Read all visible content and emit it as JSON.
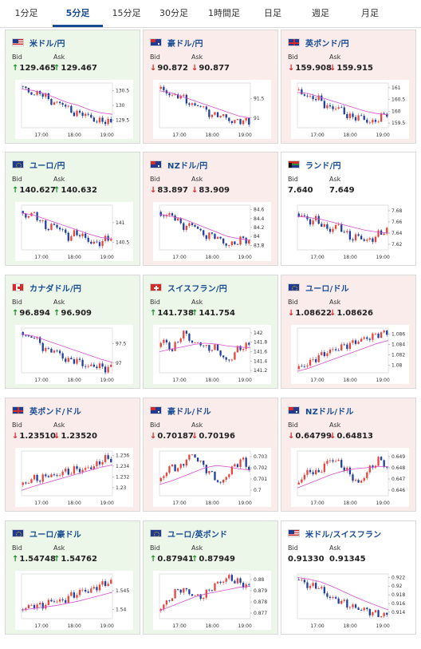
{
  "colors": {
    "accent": "#174b93",
    "up_arrow": "#1a8f26",
    "down_arrow": "#d92626",
    "up_candle": "#e8443a",
    "down_candle": "#1f3ea0",
    "ma_line": "#d64fd0"
  },
  "tabs": [
    {
      "label": "1分足",
      "active": false
    },
    {
      "label": "5分足",
      "active": true
    },
    {
      "label": "15分足",
      "active": false
    },
    {
      "label": "30分足",
      "active": false
    },
    {
      "label": "1時間足",
      "active": false
    },
    {
      "label": "日足",
      "active": false
    },
    {
      "label": "週足",
      "active": false
    },
    {
      "label": "月足",
      "active": false
    }
  ],
  "bid_label": "Bid",
  "ask_label": "Ask",
  "cards": [
    {
      "pair": "米ドル/円",
      "flag": "us",
      "trend": "up",
      "bid": "129.465",
      "ask": "129.467",
      "chart_data": {
        "type": "candlestick",
        "x_ticks": [
          "17:00",
          "18:00",
          "19:00"
        ],
        "y_ticks": [
          "129.5",
          "130",
          "130.5"
        ],
        "ylim": [
          129.25,
          130.75
        ],
        "path": [
          130.65,
          130.5,
          130.35,
          130.45,
          130.2,
          130.05,
          130.1,
          129.85,
          129.7,
          129.75,
          129.6,
          129.45,
          129.5,
          129.4
        ],
        "ma": [
          130.55,
          130.5,
          130.4,
          130.25,
          130.1,
          130.0,
          129.85,
          129.75,
          129.7
        ]
      }
    },
    {
      "pair": "豪ドル/円",
      "flag": "au",
      "trend": "down",
      "bid": "90.872",
      "ask": "90.877",
      "chart_data": {
        "type": "candlestick",
        "x_ticks": [
          "17:00",
          "18:00",
          "19:00"
        ],
        "y_ticks": [
          "91",
          "91.5"
        ],
        "ylim": [
          90.75,
          91.9
        ],
        "path": [
          91.75,
          91.7,
          91.55,
          91.6,
          91.45,
          91.3,
          91.35,
          91.15,
          91.05,
          91.1,
          90.95,
          90.9,
          90.95,
          90.88
        ],
        "ma": [
          91.7,
          91.65,
          91.55,
          91.45,
          91.35,
          91.25,
          91.15,
          91.05,
          91.0
        ]
      }
    },
    {
      "pair": "英ポンド/円",
      "flag": "gb",
      "trend": "down",
      "bid": "159.908",
      "ask": "159.915",
      "chart_data": {
        "type": "candlestick",
        "x_ticks": [
          "17:00",
          "18:00",
          "19:00"
        ],
        "y_ticks": [
          "159.5",
          "160",
          "160.5",
          "161"
        ],
        "ylim": [
          159.3,
          161.2
        ],
        "path": [
          160.9,
          160.75,
          160.55,
          160.6,
          160.3,
          160.1,
          160.2,
          159.9,
          159.7,
          159.8,
          159.6,
          159.5,
          159.75,
          159.9
        ],
        "ma": [
          160.8,
          160.75,
          160.6,
          160.45,
          160.3,
          160.15,
          160.0,
          159.9,
          159.85
        ]
      }
    },
    {
      "pair": "ユーロ/円",
      "flag": "eu",
      "trend": "up",
      "bid": "140.627",
      "ask": "140.632",
      "chart_data": {
        "type": "candlestick",
        "x_ticks": [
          "17:00",
          "18:00",
          "19:00"
        ],
        "y_ticks": [
          "140.5",
          "141"
        ],
        "ylim": [
          140.3,
          141.45
        ],
        "path": [
          141.3,
          141.15,
          141.25,
          141.0,
          140.85,
          140.95,
          140.8,
          140.6,
          140.75,
          140.65,
          140.5,
          140.45,
          140.55,
          140.62
        ],
        "ma": [
          141.25,
          141.2,
          141.1,
          141.0,
          140.9,
          140.8,
          140.7,
          140.62,
          140.58
        ]
      }
    },
    {
      "pair": "NZドル/円",
      "flag": "nz",
      "trend": "down",
      "bid": "83.897",
      "ask": "83.909",
      "chart_data": {
        "type": "candlestick",
        "x_ticks": [
          "17:00",
          "18:00",
          "19:00"
        ],
        "y_ticks": [
          "83.8",
          "84",
          "84.2",
          "84.4",
          "84.6"
        ],
        "ylim": [
          83.7,
          84.7
        ],
        "path": [
          84.55,
          84.45,
          84.5,
          84.3,
          84.2,
          84.3,
          84.1,
          84.0,
          84.05,
          83.9,
          83.8,
          83.85,
          83.95,
          83.9
        ],
        "ma": [
          84.5,
          84.45,
          84.4,
          84.3,
          84.2,
          84.1,
          84.0,
          83.95,
          83.92
        ]
      }
    },
    {
      "pair": "ランド/円",
      "flag": "za",
      "trend": "flat",
      "bid": "7.640",
      "ask": "7.649",
      "chart_data": {
        "type": "candlestick",
        "x_ticks": [
          "17:00",
          "18:00",
          "19:00"
        ],
        "y_ticks": [
          "7.62",
          "7.64",
          "7.66",
          "7.68"
        ],
        "ylim": [
          7.61,
          7.69
        ],
        "path": [
          7.675,
          7.67,
          7.66,
          7.665,
          7.65,
          7.645,
          7.655,
          7.64,
          7.63,
          7.635,
          7.625,
          7.63,
          7.64,
          7.645
        ],
        "ma": [
          7.67,
          7.668,
          7.665,
          7.66,
          7.655,
          7.65,
          7.645,
          7.642,
          7.64
        ]
      }
    },
    {
      "pair": "カナダドル/円",
      "flag": "ca",
      "trend": "up",
      "bid": "96.894",
      "ask": "96.909",
      "chart_data": {
        "type": "candlestick",
        "x_ticks": [
          "17:00",
          "18:00",
          "19:00"
        ],
        "y_ticks": [
          "97",
          "97.5"
        ],
        "ylim": [
          96.75,
          97.9
        ],
        "path": [
          97.8,
          97.65,
          97.7,
          97.45,
          97.3,
          97.35,
          97.15,
          97.05,
          97.1,
          96.95,
          96.9,
          96.95,
          96.85,
          96.9
        ],
        "ma": [
          97.75,
          97.7,
          97.6,
          97.5,
          97.4,
          97.3,
          97.2,
          97.1,
          97.02
        ]
      }
    },
    {
      "pair": "スイスフラン/円",
      "flag": "ch",
      "trend": "up",
      "bid": "141.738",
      "ask": "141.754",
      "chart_data": {
        "type": "candlestick",
        "x_ticks": [
          "17:00",
          "18:00",
          "19:00"
        ],
        "y_ticks": [
          "141.2",
          "141.4",
          "141.6",
          "141.8",
          "142"
        ],
        "ylim": [
          141.15,
          142.1
        ],
        "path": [
          141.7,
          141.85,
          141.6,
          141.9,
          142.0,
          141.75,
          141.8,
          141.65,
          141.7,
          141.55,
          141.35,
          141.6,
          141.7,
          141.74
        ],
        "ma": [
          141.6,
          141.65,
          141.7,
          141.75,
          141.78,
          141.76,
          141.72,
          141.7,
          141.68
        ]
      }
    },
    {
      "pair": "ユーロ/ドル",
      "flag": "eu-us",
      "trend": "down",
      "bid": "1.08622",
      "ask": "1.08626",
      "chart_data": {
        "type": "candlestick",
        "x_ticks": [
          "17:00",
          "18:00",
          "19:00"
        ],
        "y_ticks": [
          "1.08",
          "1.082",
          "1.084",
          "1.086"
        ],
        "ylim": [
          1.0785,
          1.0872
        ],
        "path": [
          1.0792,
          1.0798,
          1.0805,
          1.0815,
          1.0822,
          1.0828,
          1.0832,
          1.0838,
          1.0842,
          1.0848,
          1.0852,
          1.0856,
          1.0862,
          1.0862
        ],
        "ma": [
          1.0788,
          1.0794,
          1.0802,
          1.081,
          1.0818,
          1.0826,
          1.0834,
          1.0842,
          1.0848
        ]
      }
    },
    {
      "pair": "英ポンド/ドル",
      "flag": "gb-us",
      "trend": "down",
      "bid": "1.23510",
      "ask": "1.23520",
      "chart_data": {
        "type": "candlestick",
        "x_ticks": [
          "17:00",
          "18:00",
          "19:00"
        ],
        "y_ticks": [
          "1.23",
          "1.232",
          "1.234",
          "1.236"
        ],
        "ylim": [
          1.2285,
          1.2368
        ],
        "path": [
          1.2305,
          1.231,
          1.2318,
          1.2315,
          1.2325,
          1.232,
          1.233,
          1.2328,
          1.2335,
          1.2332,
          1.2338,
          1.2342,
          1.2355,
          1.2351
        ],
        "ma": [
          1.2295,
          1.2302,
          1.2308,
          1.2314,
          1.232,
          1.2326,
          1.2332,
          1.2338,
          1.2342
        ]
      }
    },
    {
      "pair": "豪ドル/ドル",
      "flag": "au-us",
      "trend": "down",
      "bid": "0.70187",
      "ask": "0.70196",
      "chart_data": {
        "type": "candlestick",
        "x_ticks": [
          "17:00",
          "18:00",
          "19:00"
        ],
        "y_ticks": [
          "0.7",
          "0.701",
          "0.702",
          "0.703"
        ],
        "ylim": [
          0.6995,
          0.7035
        ],
        "path": [
          0.7008,
          0.7015,
          0.7022,
          0.7018,
          0.7028,
          0.7032,
          0.7025,
          0.7018,
          0.7012,
          0.7005,
          0.7015,
          0.7022,
          0.7028,
          0.7019
        ],
        "ma": [
          0.7005,
          0.7008,
          0.7012,
          0.7016,
          0.702,
          0.7022,
          0.7021,
          0.7019,
          0.7018
        ]
      }
    },
    {
      "pair": "NZドル/ドル",
      "flag": "nz-us",
      "trend": "down",
      "bid": "0.64799",
      "ask": "0.64813",
      "chart_data": {
        "type": "candlestick",
        "x_ticks": [
          "17:00",
          "18:00",
          "19:00"
        ],
        "y_ticks": [
          "0.646",
          "0.647",
          "0.648",
          "0.649"
        ],
        "ylim": [
          0.6455,
          0.6495
        ],
        "path": [
          0.6465,
          0.6472,
          0.6478,
          0.6474,
          0.6482,
          0.6488,
          0.6485,
          0.6479,
          0.6472,
          0.6465,
          0.6475,
          0.6482,
          0.6488,
          0.648
        ],
        "ma": [
          0.6462,
          0.6466,
          0.647,
          0.6474,
          0.6477,
          0.6479,
          0.648,
          0.6481,
          0.6481
        ]
      }
    },
    {
      "pair": "ユーロ/豪ドル",
      "flag": "eu-au",
      "trend": "up",
      "bid": "1.54748",
      "ask": "1.54762",
      "chart_data": {
        "type": "candlestick",
        "x_ticks": [
          "17:00",
          "18:00",
          "19:00"
        ],
        "y_ticks": [
          "1.54",
          "1.545"
        ],
        "ylim": [
          1.5375,
          1.5495
        ],
        "path": [
          1.54,
          1.5405,
          1.5412,
          1.5408,
          1.5418,
          1.5425,
          1.542,
          1.5435,
          1.544,
          1.5452,
          1.5448,
          1.5462,
          1.5468,
          1.5475
        ],
        "ma": [
          1.5398,
          1.5402,
          1.5406,
          1.541,
          1.5416,
          1.5422,
          1.543,
          1.5438,
          1.5446
        ]
      }
    },
    {
      "pair": "ユーロ/英ポンド",
      "flag": "eu-gb",
      "trend": "up",
      "bid": "0.87941",
      "ask": "0.87949",
      "chart_data": {
        "type": "candlestick",
        "x_ticks": [
          "17:00",
          "18:00",
          "19:00"
        ],
        "y_ticks": [
          "0.877",
          "0.878",
          "0.879",
          "0.88"
        ],
        "ylim": [
          0.8765,
          0.8805
        ],
        "path": [
          0.8772,
          0.8778,
          0.8785,
          0.8792,
          0.879,
          0.8786,
          0.8784,
          0.8788,
          0.8795,
          0.8798,
          0.8802,
          0.8799,
          0.8796,
          0.8794
        ],
        "ma": [
          0.8772,
          0.8776,
          0.878,
          0.8784,
          0.8787,
          0.8789,
          0.8791,
          0.8793,
          0.8794
        ]
      }
    },
    {
      "pair": "米ドル/スイスフラン",
      "flag": "us-ch",
      "trend": "flat",
      "bid": "0.91330",
      "ask": "0.91345",
      "chart_data": {
        "type": "candlestick",
        "x_ticks": [
          "17:00",
          "18:00",
          "19:00"
        ],
        "y_ticks": [
          "0.914",
          "0.916",
          "0.918",
          "0.92",
          "0.922"
        ],
        "ylim": [
          0.9125,
          0.9228
        ],
        "path": [
          0.9215,
          0.921,
          0.9198,
          0.9202,
          0.9185,
          0.9172,
          0.9168,
          0.916,
          0.9152,
          0.9148,
          0.9145,
          0.9138,
          0.9134,
          0.9133
        ],
        "ma": [
          0.922,
          0.9216,
          0.921,
          0.92,
          0.9188,
          0.9176,
          0.9165,
          0.9155,
          0.9145
        ]
      }
    }
  ]
}
